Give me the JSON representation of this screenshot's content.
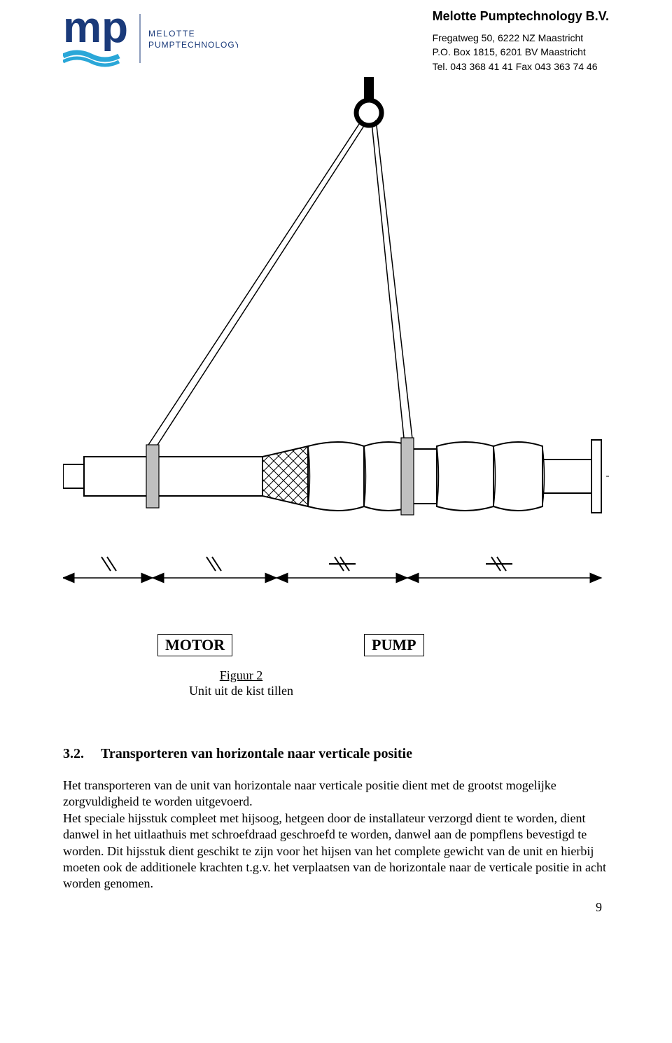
{
  "header": {
    "logo": {
      "brand_top": "MELOTTE",
      "brand_bottom": "PUMPTECHNOLOGY",
      "mp_text": "mp",
      "primary_color": "#1a3a7a",
      "accent_color": "#2aa7d8"
    },
    "company_name": "Melotte Pumptechnology B.V.",
    "address_line1": "Fregatweg 50,  6222 NZ Maastricht",
    "address_line2": "P.O. Box 1815, 6201 BV Maastricht",
    "tel_fax": "Tel. 043 368 41 41      Fax 043 363 74 46"
  },
  "figure": {
    "label_motor": "MOTOR",
    "label_pump": "PUMP",
    "caption_no": "Figuur 2",
    "caption_text": "Unit uit de kist tillen",
    "line_color": "#000000",
    "fill_color": "#ffffff",
    "band_color": "#bfbfbf"
  },
  "section": {
    "number": "3.2.",
    "title": "Transporteren van horizontale naar verticale positie",
    "paragraph": "Het transporteren van de unit van horizontale naar verticale positie dient met de grootst mogelijke zorgvuldigheid te worden uitgevoerd.\nHet speciale hijsstuk compleet met hijsoog, hetgeen door de installateur verzorgd dient te worden, dient danwel in het uitlaathuis met schroefdraad geschroefd te worden, danwel aan de pompflens bevestigd te worden. Dit hijsstuk dient geschikt te zijn voor het hijsen van het complete gewicht van de unit en hierbij moeten ook de additionele krachten t.g.v. het verplaatsen van de horizontale naar de verticale positie in acht worden genomen."
  },
  "page_number": "9"
}
